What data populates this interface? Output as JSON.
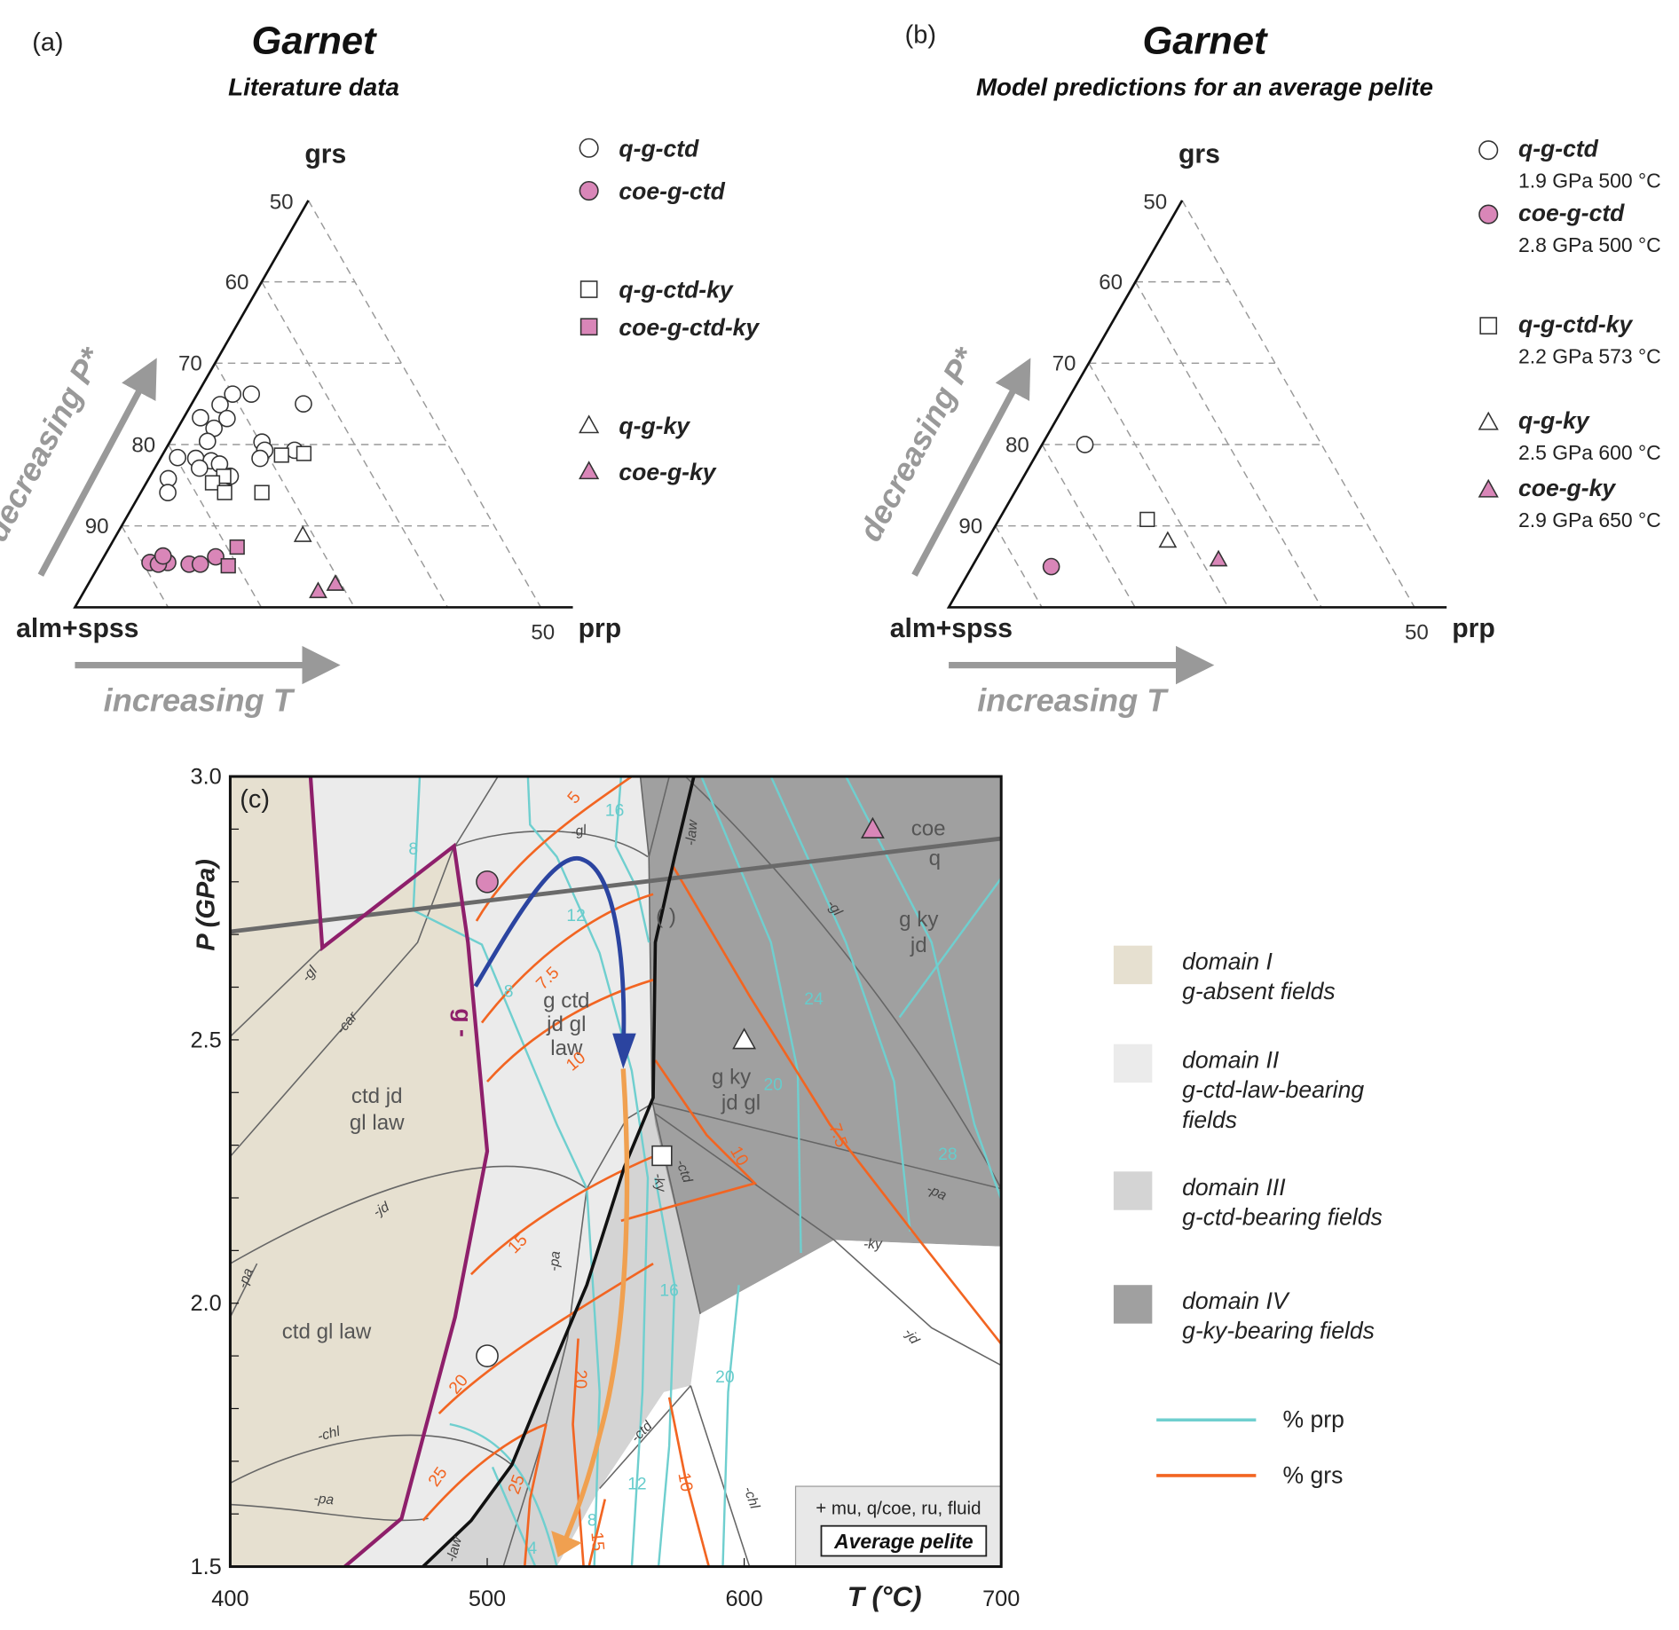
{
  "colors": {
    "pink": "#d986b8",
    "beige": "#e6e0d0",
    "domain2": "#ebebeb",
    "domain3": "#d4d4d4",
    "domain4": "#a0a0a0",
    "magenta": "#8e1f6b",
    "blue": "#2b44a0",
    "orange_path": "#f0a050",
    "grs_line": "#f26522",
    "prp_line": "#6fcfcf"
  },
  "panel_a": {
    "label": "(a)",
    "title": "Garnet",
    "subtitle": "Literature data"
  },
  "panel_b": {
    "label": "(b)",
    "title": "Garnet",
    "subtitle": "Model predictions for an average pelite"
  },
  "ternary": {
    "apex": "grs",
    "left": "alm+spss",
    "right": "prp",
    "apex_tick": "50",
    "right_tick": "50",
    "left_ticks": [
      "60",
      "70",
      "80",
      "90"
    ],
    "arrow_left": "decreasing P*",
    "arrow_bottom": "increasing T"
  },
  "legend_a": [
    {
      "symbol": "circle-open",
      "label": "q-g-ctd"
    },
    {
      "symbol": "circle-pink",
      "label": "coe-g-ctd"
    },
    {
      "symbol": "square-open",
      "label": "q-g-ctd-ky"
    },
    {
      "symbol": "square-pink",
      "label": "coe-g-ctd-ky"
    },
    {
      "symbol": "triangle-open",
      "label": "q-g-ky"
    },
    {
      "symbol": "triangle-pink",
      "label": "coe-g-ky"
    }
  ],
  "legend_b": [
    {
      "symbol": "circle-open",
      "label": "q-g-ctd",
      "cond": "1.9 GPa 500 °C"
    },
    {
      "symbol": "circle-pink",
      "label": "coe-g-ctd",
      "cond": "2.8 GPa 500 °C"
    },
    {
      "symbol": "square-open",
      "label": "q-g-ctd-ky",
      "cond": "2.2 GPa 573 °C"
    },
    {
      "symbol": "triangle-open",
      "label": "q-g-ky",
      "cond": "2.5 GPa 600 °C"
    },
    {
      "symbol": "triangle-pink",
      "label": "coe-g-ky",
      "cond": "2.9 GPa 650 °C"
    }
  ],
  "panel_c": {
    "label": "(c)",
    "xlabel": "T (°C)",
    "ylabel": "P (GPa)",
    "xticks": [
      "400",
      "500",
      "600",
      "700"
    ],
    "yticks": [
      "1.5",
      "2.0",
      "2.5",
      "3.0"
    ],
    "fields": [
      "ctd jd",
      "gl law",
      "ctd gl law",
      "g ctd",
      "jd gl",
      "law",
      "g ky",
      "jd gl",
      "g ky",
      "jd",
      "coe",
      "q",
      "( )",
      "g -"
    ],
    "reactions": [
      "-gl",
      "-gl",
      "-car",
      "-jd",
      "-pa",
      "-chl",
      "-pa",
      "-pa",
      "-ky",
      "-ctd",
      "-law",
      "-law",
      "-gl",
      "-pa",
      "-ky",
      "-jd",
      "-ctd",
      "-chl"
    ],
    "grs_labels": [
      "5",
      "7.5",
      "10",
      "15",
      "20",
      "25",
      "20",
      "25",
      "10",
      "10",
      "7.5",
      "15"
    ],
    "prp_labels": [
      "8",
      "16",
      "12",
      "8",
      "24",
      "20",
      "28",
      "16",
      "20",
      "12",
      "8",
      "4"
    ],
    "box_line1": "+ mu, q/coe, ru, fluid",
    "box_line2": "Average pelite",
    "domains": [
      {
        "name": "domain I",
        "desc": "g-absent fields"
      },
      {
        "name": "domain II",
        "desc": "g-ctd-law-bearing",
        "desc2": "fields"
      },
      {
        "name": "domain III",
        "desc": "g-ctd-bearing fields"
      },
      {
        "name": "domain IV",
        "desc": "g-ky-bearing fields"
      }
    ],
    "line_legend": [
      {
        "label": "% prp"
      },
      {
        "label": "% grs"
      }
    ]
  },
  "chart_data": [
    {
      "type": "scatter",
      "title": "Garnet — Literature data",
      "note": "ternary grs–(alm+spss)–prp, values in mol% (grs, prp)",
      "series": [
        {
          "name": "q-g-ctd",
          "points": [
            [
              26.2,
              5.8
            ],
            [
              26.2,
              3.8
            ],
            [
              24.9,
              3.1
            ],
            [
              25.0,
              12.0
            ],
            [
              23.3,
              1.8
            ],
            [
              23.2,
              4.7
            ],
            [
              22.0,
              3.9
            ],
            [
              20.4,
              4.0
            ],
            [
              20.3,
              9.9
            ],
            [
              19.3,
              13.9
            ],
            [
              19.3,
              10.7
            ],
            [
              18.3,
              10.7
            ],
            [
              18.4,
              1.8
            ],
            [
              18.3,
              3.8
            ],
            [
              18.0,
              5.6
            ],
            [
              17.1,
              4.8
            ],
            [
              17.6,
              6.7
            ],
            [
              16.1,
              8.6
            ],
            [
              15.8,
              2.1
            ],
            [
              14.1,
              2.9
            ]
          ]
        },
        {
          "name": "q-g-ctd-ky",
          "points": [
            [
              18.7,
              12.8
            ],
            [
              18.9,
              15.1
            ],
            [
              16.1,
              7.9
            ],
            [
              15.3,
              7.1
            ],
            [
              14.1,
              9.0
            ],
            [
              14.1,
              13.0
            ]
          ]
        },
        {
          "name": "coe-g-ctd",
          "points": [
            [
              5.5,
              5.3
            ],
            [
              5.5,
              7.2
            ],
            [
              5.3,
              9.6
            ],
            [
              5.3,
              10.8
            ],
            [
              5.3,
              6.3
            ],
            [
              6.3,
              6.3
            ],
            [
              6.2,
              12.0
            ]
          ]
        },
        {
          "name": "coe-g-ctd-ky",
          "points": [
            [
              7.4,
              13.7
            ],
            [
              5.1,
              13.9
            ]
          ]
        },
        {
          "name": "q-g-ky",
          "points": [
            [
              8.9,
              20.0
            ]
          ]
        },
        {
          "name": "coe-g-ky",
          "points": [
            [
              2.0,
              25.1
            ],
            [
              2.9,
              26.5
            ]
          ]
        }
      ]
    },
    {
      "type": "scatter",
      "title": "Garnet — Model predictions for an average pelite",
      "series": [
        {
          "name": "q-g-ctd",
          "points": [
            [
              20.0,
              4.6
            ]
          ]
        },
        {
          "name": "coe-g-ctd",
          "points": [
            [
              5.0,
              8.5
            ]
          ]
        },
        {
          "name": "q-g-ctd-ky",
          "points": [
            [
              10.8,
              15.9
            ]
          ]
        },
        {
          "name": "q-g-ky",
          "points": [
            [
              8.2,
              19.4
            ]
          ]
        },
        {
          "name": "coe-g-ky",
          "points": [
            [
              5.9,
              26.0
            ]
          ]
        }
      ]
    },
    {
      "type": "line",
      "title": "P–T pseudosection, Average pelite",
      "xlabel": "T (°C)",
      "ylabel": "P (GPa)",
      "xlim": [
        400,
        700
      ],
      "ylim": [
        1.5,
        3.0
      ],
      "points": [
        {
          "name": "q-g-ctd",
          "T": 500,
          "P": 1.9
        },
        {
          "name": "coe-g-ctd",
          "T": 500,
          "P": 2.8
        },
        {
          "name": "q-g-ctd-ky",
          "T": 573,
          "P": 2.2
        },
        {
          "name": "q-g-ky",
          "T": 600,
          "P": 2.5
        },
        {
          "name": "coe-g-ky",
          "T": 650,
          "P": 2.9
        }
      ]
    }
  ]
}
